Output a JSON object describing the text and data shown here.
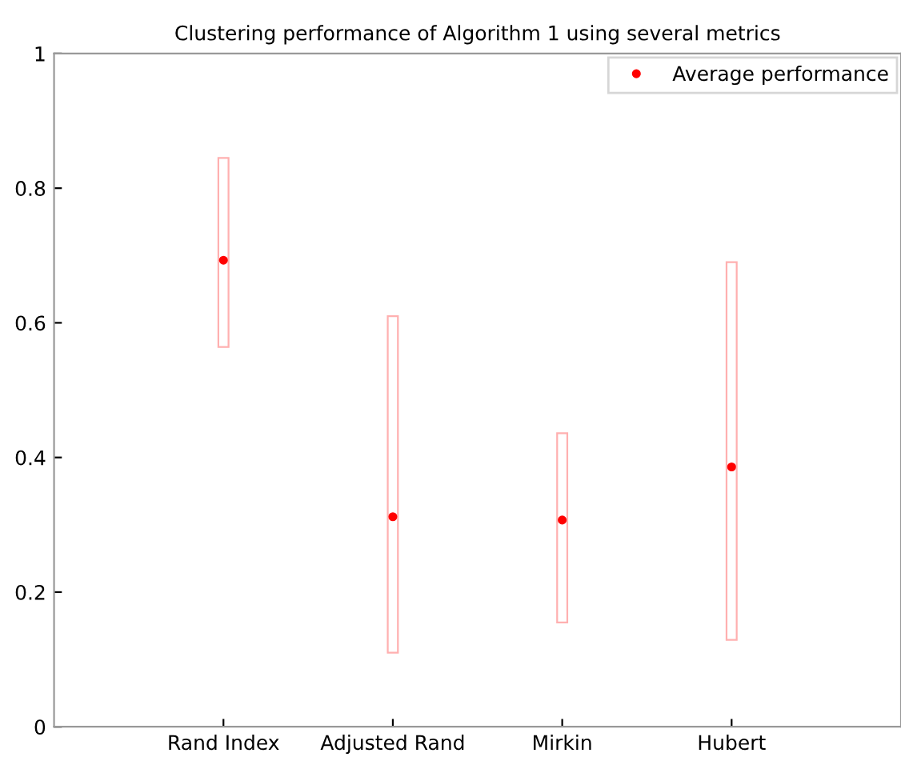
{
  "chart_data": {
    "type": "bar",
    "title": "Clustering performance of Algorithm 1 using several metrics",
    "categories": [
      "Rand Index",
      "Adjusted Rand",
      "Mirkin",
      "Hubert"
    ],
    "series": [
      {
        "color": "#ffb0b0",
        "base": [
          0.564,
          0.11,
          0.155,
          0.129
        ],
        "values": [
          0.281,
          0.5,
          0.281,
          0.561
        ]
      },
      {
        "type": "scatter",
        "name": "Average performance",
        "color": "#ff0000",
        "marker": "circle",
        "values": [
          0.693,
          0.312,
          0.307,
          0.386
        ]
      }
    ],
    "ylim": [
      0,
      1
    ],
    "yticks": [
      0,
      0.2,
      0.4,
      0.6,
      0.8,
      1
    ],
    "grid": false,
    "legend": "top right"
  }
}
